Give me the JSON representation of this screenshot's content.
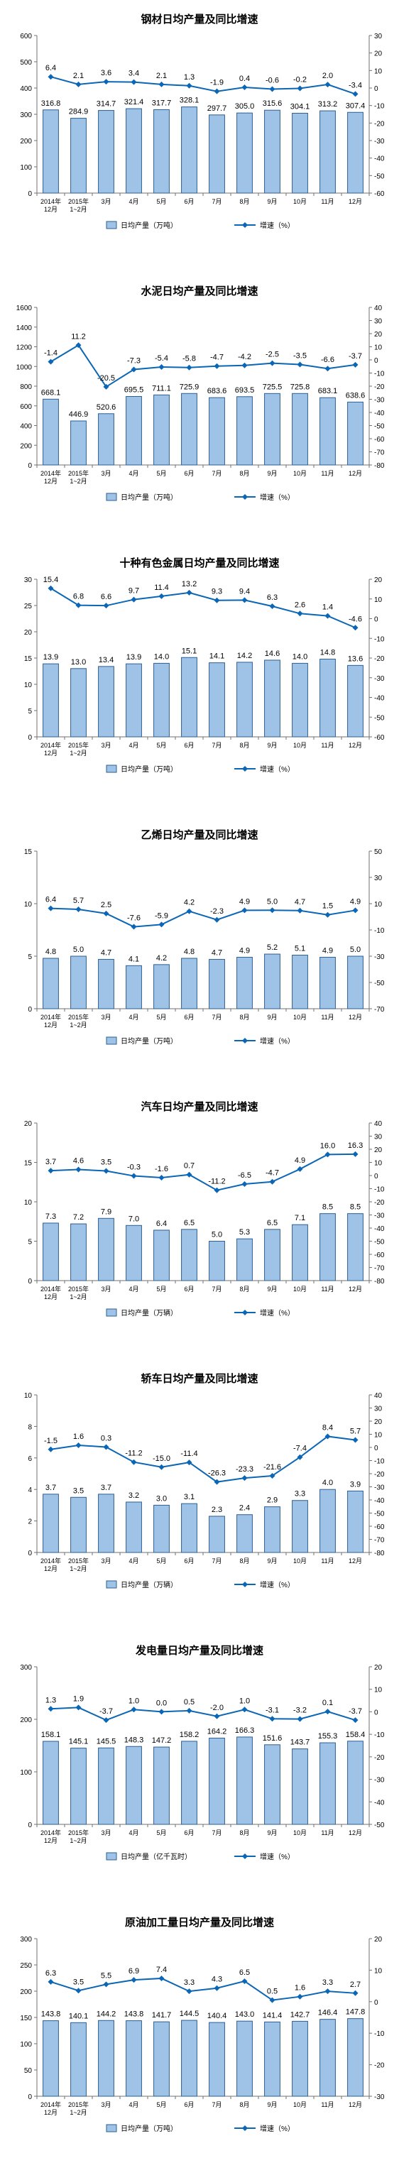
{
  "colors": {
    "bar_fill": "#9ec3e6",
    "bar_edge": "#2e5f93",
    "line": "#0b66b5",
    "axis": "#707070"
  },
  "chart_data": [
    {
      "type": "bar",
      "title": "钢材日均产量及同比增速",
      "categories": [
        "2014年\n12月",
        "2015年\n1~2月",
        "3月",
        "4月",
        "5月",
        "6月",
        "7月",
        "8月",
        "9月",
        "10月",
        "11月",
        "12月"
      ],
      "ylim": [
        0,
        600
      ],
      "yticks": [
        0,
        100,
        200,
        300,
        400,
        500,
        600
      ],
      "y2lim": [
        -60,
        30
      ],
      "y2ticks": [
        -60,
        -50,
        -40,
        -30,
        -20,
        -10,
        0,
        10,
        20,
        30
      ],
      "series": [
        {
          "name": "日均产量（万吨）",
          "axis": "left",
          "values": [
            316.8,
            284.9,
            314.7,
            321.4,
            317.7,
            328.1,
            297.7,
            305.0,
            315.6,
            304.1,
            313.2,
            307.4
          ]
        },
        {
          "name": "增速（%）",
          "axis": "right",
          "values": [
            6.4,
            2.1,
            3.6,
            3.4,
            2.1,
            1.3,
            -1.9,
            0.4,
            -0.6,
            -0.2,
            2.0,
            -3.4
          ]
        }
      ],
      "legend": "bottom"
    },
    {
      "type": "bar",
      "title": "水泥日均产量及同比增速",
      "categories": [
        "2014年\n12月",
        "2015年\n1~2月",
        "3月",
        "4月",
        "5月",
        "6月",
        "7月",
        "8月",
        "9月",
        "10月",
        "11月",
        "12月"
      ],
      "ylim": [
        0,
        1600
      ],
      "yticks": [
        0,
        200,
        400,
        600,
        800,
        1000,
        1200,
        1400,
        1600
      ],
      "y2lim": [
        -80,
        40
      ],
      "y2ticks": [
        -80,
        -70,
        -60,
        -50,
        -40,
        -30,
        -20,
        -10,
        0,
        10,
        20,
        30,
        40
      ],
      "series": [
        {
          "name": "日均产量（万吨）",
          "axis": "left",
          "values": [
            668.1,
            446.9,
            520.6,
            695.5,
            711.1,
            725.9,
            683.6,
            693.5,
            725.5,
            725.8,
            683.1,
            638.6
          ]
        },
        {
          "name": "增速（%）",
          "axis": "right",
          "values": [
            -1.4,
            11.2,
            -20.5,
            -7.3,
            -5.4,
            -5.8,
            -4.7,
            -4.2,
            -2.5,
            -3.5,
            -6.6,
            -3.7
          ]
        }
      ],
      "legend": "bottom"
    },
    {
      "type": "bar",
      "title": "十种有色金属日均产量及同比增速",
      "categories": [
        "2014年\n12月",
        "2015年\n1~2月",
        "3月",
        "4月",
        "5月",
        "6月",
        "7月",
        "8月",
        "9月",
        "10月",
        "11月",
        "12月"
      ],
      "ylim": [
        0,
        30
      ],
      "yticks": [
        0,
        5,
        10,
        15,
        20,
        25,
        30
      ],
      "y2lim": [
        -60,
        20
      ],
      "y2ticks": [
        -60,
        -50,
        -40,
        -30,
        -20,
        -10,
        0,
        10,
        20
      ],
      "series": [
        {
          "name": "日均产量（万吨）",
          "axis": "left",
          "values": [
            13.9,
            13.0,
            13.4,
            13.9,
            14.0,
            15.1,
            14.1,
            14.2,
            14.6,
            14.0,
            14.8,
            13.6
          ]
        },
        {
          "name": "增速（%）",
          "axis": "right",
          "values": [
            15.4,
            6.8,
            6.6,
            9.7,
            11.4,
            13.2,
            9.3,
            9.4,
            6.3,
            2.6,
            1.4,
            -4.6
          ]
        }
      ],
      "legend": "bottom"
    },
    {
      "type": "bar",
      "title": "乙烯日均产量及同比增速",
      "categories": [
        "2014年\n12月",
        "2015年\n1~2月",
        "3月",
        "4月",
        "5月",
        "6月",
        "7月",
        "8月",
        "9月",
        "10月",
        "11月",
        "12月"
      ],
      "ylim": [
        0,
        15
      ],
      "yticks": [
        0,
        5,
        10,
        15
      ],
      "y2lim": [
        -70,
        50
      ],
      "y2ticks": [
        -70,
        -50,
        -30,
        -10,
        10,
        30,
        50
      ],
      "series": [
        {
          "name": "日均产量（万吨）",
          "axis": "left",
          "values": [
            4.8,
            5.0,
            4.7,
            4.1,
            4.2,
            4.8,
            4.7,
            4.9,
            5.2,
            5.1,
            4.9,
            5.0
          ]
        },
        {
          "name": "增速（%）",
          "axis": "right",
          "values": [
            6.4,
            5.7,
            2.5,
            -7.6,
            -5.9,
            4.2,
            -2.3,
            4.9,
            5.0,
            4.7,
            1.5,
            4.9
          ]
        }
      ],
      "legend": "bottom"
    },
    {
      "type": "bar",
      "title": "汽车日均产量及同比增速",
      "categories": [
        "2014年\n12月",
        "2015年\n1~2月",
        "3月",
        "4月",
        "5月",
        "6月",
        "7月",
        "8月",
        "9月",
        "10月",
        "11月",
        "12月"
      ],
      "ylim": [
        0,
        20
      ],
      "yticks": [
        0,
        5,
        10,
        15,
        20
      ],
      "y2lim": [
        -80,
        40
      ],
      "y2ticks": [
        -80,
        -70,
        -60,
        -50,
        -40,
        -30,
        -20,
        -10,
        0,
        10,
        20,
        30,
        40
      ],
      "series": [
        {
          "name": "日均产量（万辆）",
          "axis": "left",
          "values": [
            7.3,
            7.2,
            7.9,
            7.0,
            6.4,
            6.5,
            5.0,
            5.3,
            6.5,
            7.1,
            8.5,
            8.5
          ]
        },
        {
          "name": "增速（%）",
          "axis": "right",
          "values": [
            3.7,
            4.6,
            3.5,
            -0.3,
            -1.6,
            0.7,
            -11.2,
            -6.5,
            -4.7,
            4.9,
            16.0,
            16.3
          ]
        }
      ],
      "legend": "bottom"
    },
    {
      "type": "bar",
      "title": "轿车日均产量及同比增速",
      "categories": [
        "2014年\n12月",
        "2015年\n1~2月",
        "3月",
        "4月",
        "5月",
        "6月",
        "7月",
        "8月",
        "9月",
        "10月",
        "11月",
        "12月"
      ],
      "ylim": [
        0,
        10
      ],
      "yticks": [
        0,
        2,
        4,
        6,
        8,
        10
      ],
      "y2lim": [
        -80,
        40
      ],
      "y2ticks": [
        -80,
        -70,
        -60,
        -50,
        -40,
        -30,
        -20,
        -10,
        0,
        10,
        20,
        30,
        40
      ],
      "series": [
        {
          "name": "日均产量（万辆）",
          "axis": "left",
          "values": [
            3.7,
            3.5,
            3.7,
            3.2,
            3.0,
            3.1,
            2.3,
            2.4,
            2.9,
            3.3,
            4.0,
            3.9
          ]
        },
        {
          "name": "增速（%）",
          "axis": "right",
          "values": [
            -1.5,
            1.6,
            0.3,
            -11.2,
            -15.0,
            -11.4,
            -26.3,
            -23.3,
            -21.6,
            -7.4,
            8.4,
            5.7
          ]
        }
      ],
      "legend": "bottom"
    },
    {
      "type": "bar",
      "title": "发电量日均产量及同比增速",
      "categories": [
        "2014年\n12月",
        "2015年\n1~2月",
        "3月",
        "4月",
        "5月",
        "6月",
        "7月",
        "8月",
        "9月",
        "10月",
        "11月",
        "12月"
      ],
      "ylim": [
        0,
        300
      ],
      "yticks": [
        0,
        100,
        200,
        300
      ],
      "y2lim": [
        -50,
        20
      ],
      "y2ticks": [
        -50,
        -40,
        -30,
        -20,
        -10,
        0,
        10,
        20
      ],
      "series": [
        {
          "name": "日均产量（亿千瓦时）",
          "axis": "left",
          "values": [
            158.1,
            145.1,
            145.5,
            148.3,
            147.2,
            158.2,
            164.2,
            166.3,
            151.6,
            143.7,
            155.3,
            158.4
          ]
        },
        {
          "name": "增速（%）",
          "axis": "right",
          "values": [
            1.3,
            1.9,
            -3.7,
            1.0,
            0.0,
            0.5,
            -2.0,
            1.0,
            -3.1,
            -3.2,
            0.1,
            -3.7
          ]
        }
      ],
      "legend": "bottom"
    },
    {
      "type": "bar",
      "title": "原油加工量日均产量及同比增速",
      "categories": [
        "2014年\n12月",
        "2015年\n1~2月",
        "3月",
        "4月",
        "5月",
        "6月",
        "7月",
        "8月",
        "9月",
        "10月",
        "11月",
        "12月"
      ],
      "ylim": [
        0,
        300
      ],
      "yticks": [
        0,
        50,
        100,
        150,
        200,
        250,
        300
      ],
      "y2lim": [
        -30,
        20
      ],
      "y2ticks": [
        -30,
        -20,
        -10,
        0,
        10,
        20
      ],
      "series": [
        {
          "name": "日均产量（万吨）",
          "axis": "left",
          "values": [
            143.8,
            140.1,
            144.2,
            143.8,
            141.7,
            144.5,
            140.4,
            143.0,
            141.4,
            142.7,
            146.4,
            147.8
          ]
        },
        {
          "name": "增速（%）",
          "axis": "right",
          "values": [
            6.3,
            3.5,
            5.5,
            6.9,
            7.4,
            3.3,
            4.3,
            6.5,
            0.5,
            1.6,
            3.3,
            2.7
          ]
        }
      ],
      "legend": "bottom"
    }
  ]
}
